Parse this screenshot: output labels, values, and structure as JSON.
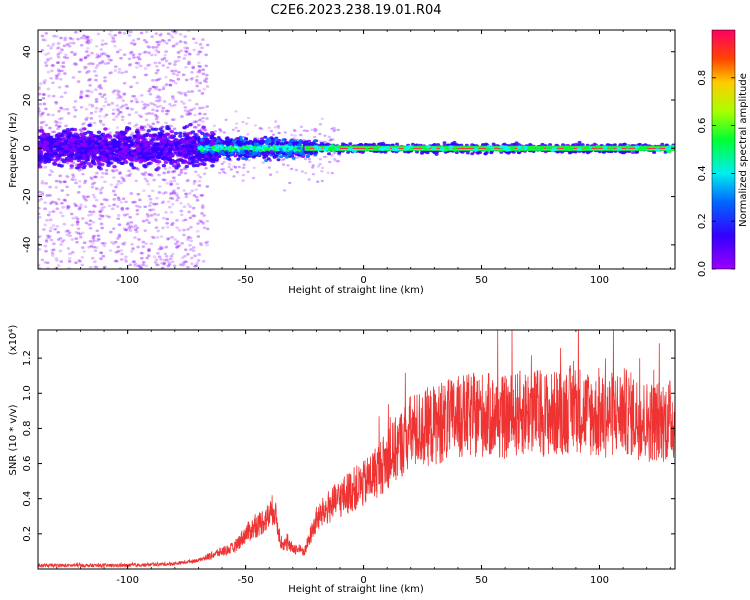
{
  "figure": {
    "title": "C2E6.2023.238.19.01.R04"
  },
  "chart_data": [
    {
      "type": "heatmap",
      "xlabel": "Height of straight line (km)",
      "ylabel": "Frequency (Hz)",
      "xlim": [
        -138,
        132
      ],
      "ylim": [
        -50,
        49
      ],
      "xticks": [
        -100,
        -50,
        0,
        50,
        100
      ],
      "yticks": [
        -40,
        -20,
        0,
        20,
        40
      ],
      "colorbar": {
        "label": "Normalized spectral amplitude",
        "range": [
          0.0,
          1.0
        ],
        "ticks": [
          0.0,
          0.2,
          0.4,
          0.6,
          0.8
        ],
        "colormap": [
          "#8800ff",
          "#3300ff",
          "#0077ff",
          "#00ffee",
          "#00ff33",
          "#ccff00",
          "#ff6600",
          "#ff0066"
        ]
      },
      "dominant_frequency_hz": 0,
      "description_of_features": {
        "strong_line_from_km": -25,
        "strong_line_to_km": 132,
        "noisy_region_to_km": -70
      }
    },
    {
      "type": "line",
      "xlabel": "Height of straight line (km)",
      "ylabel": "SNR (10 * v/v)",
      "y_scale_label": "(x10⁴)",
      "xlim": [
        -138,
        132
      ],
      "ylim": [
        0,
        1.36
      ],
      "xticks": [
        -100,
        -50,
        0,
        50,
        100
      ],
      "yticks": [
        0.2,
        0.4,
        0.6,
        0.8,
        1.0,
        1.2
      ],
      "color": "#ee3333",
      "series": [
        {
          "x": [
            -138,
            -100,
            -80,
            -70,
            -60,
            -55,
            -50,
            -45,
            -40,
            -38,
            -35,
            -30,
            -25,
            -20,
            -15,
            -10,
            -5,
            0,
            5,
            10,
            15,
            20,
            25,
            30,
            40,
            50,
            60,
            70,
            80,
            90,
            100,
            110,
            120,
            132
          ],
          "y": [
            0.02,
            0.02,
            0.03,
            0.05,
            0.1,
            0.12,
            0.2,
            0.25,
            0.3,
            0.35,
            0.15,
            0.12,
            0.1,
            0.28,
            0.35,
            0.4,
            0.45,
            0.48,
            0.55,
            0.62,
            0.7,
            0.78,
            0.8,
            0.82,
            0.86,
            0.88,
            0.86,
            0.9,
            0.88,
            0.92,
            0.86,
            0.9,
            0.84,
            0.85
          ]
        }
      ]
    }
  ]
}
